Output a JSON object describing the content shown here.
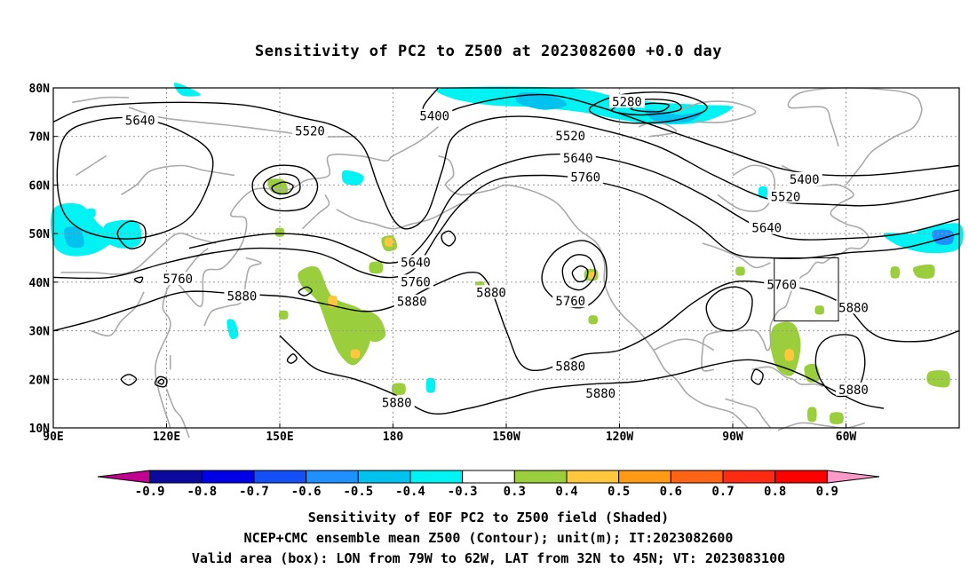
{
  "title": "Sensitivity of PC2 to Z500 at 2023082600 +0.0 day",
  "axes": {
    "lat_labels": [
      "80N",
      "70N",
      "60N",
      "50N",
      "40N",
      "30N",
      "20N",
      "10N"
    ],
    "lon_labels": [
      "90E",
      "120E",
      "150E",
      "180",
      "150W",
      "120W",
      "90W",
      "60W"
    ]
  },
  "contour_labels": [
    {
      "text": "5400",
      "lon": 191,
      "lat": 74.2
    },
    {
      "text": "5280",
      "lon": 242,
      "lat": 77.2
    },
    {
      "text": "5640",
      "lon": 113,
      "lat": 73.3
    },
    {
      "text": "5520",
      "lon": 158,
      "lat": 71.1
    },
    {
      "text": "5520",
      "lon": 227,
      "lat": 70.1
    },
    {
      "text": "5640",
      "lon": 229,
      "lat": 65.6
    },
    {
      "text": "5760",
      "lon": 231,
      "lat": 61.6
    },
    {
      "text": "5400",
      "lon": 289,
      "lat": 61.2
    },
    {
      "text": "5520",
      "lon": 284,
      "lat": 57.6
    },
    {
      "text": "5640",
      "lon": 279,
      "lat": 51.2
    },
    {
      "text": "5760",
      "lon": 283,
      "lat": 39.5
    },
    {
      "text": "5640",
      "lon": 186,
      "lat": 44.1
    },
    {
      "text": "5760",
      "lon": 186,
      "lat": 40.1
    },
    {
      "text": "5880",
      "lon": 185,
      "lat": 36.0
    },
    {
      "text": "5880",
      "lon": 206,
      "lat": 37.9
    },
    {
      "text": "5760",
      "lon": 227,
      "lat": 36.1
    },
    {
      "text": "5760",
      "lon": 123,
      "lat": 40.7
    },
    {
      "text": "5880",
      "lon": 140,
      "lat": 37.1
    },
    {
      "text": "5880",
      "lon": 227,
      "lat": 22.7
    },
    {
      "text": "5880",
      "lon": 235,
      "lat": 17.1
    },
    {
      "text": "5880",
      "lon": 181,
      "lat": 15.2
    },
    {
      "text": "5880",
      "lon": 302,
      "lat": 34.8
    },
    {
      "text": "5880",
      "lon": 302,
      "lat": 17.9
    }
  ],
  "valid_box": {
    "lon_min": 281,
    "lon_max": 298,
    "lat_min": 32,
    "lat_max": 45
  },
  "colorbar": {
    "labels": [
      "-0.9",
      "-0.8",
      "-0.7",
      "-0.6",
      "-0.5",
      "-0.4",
      "-0.3",
      "0.3",
      "0.4",
      "0.5",
      "0.6",
      "0.7",
      "0.8",
      "0.9"
    ],
    "colors": [
      "#c2008f",
      "#0a0a9e",
      "#0000e6",
      "#1450f5",
      "#1e90ff",
      "#00c2ee",
      "#00f2f2",
      "#ffffff",
      "#9ace3c",
      "#ffc83c",
      "#ff9a14",
      "#ff6414",
      "#ff2a14",
      "#ff0000",
      "#ff99c8"
    ]
  },
  "footer": {
    "line1": "Sensitivity of EOF PC2 to Z500 field (Shaded)",
    "line2": "NCEP+CMC ensemble mean Z500 (Contour); unit(m); IT:2023082600",
    "line3": "Valid area (box): LON from 79W to 62W, LAT from 32N to 45N; VT: 2023083100"
  }
}
